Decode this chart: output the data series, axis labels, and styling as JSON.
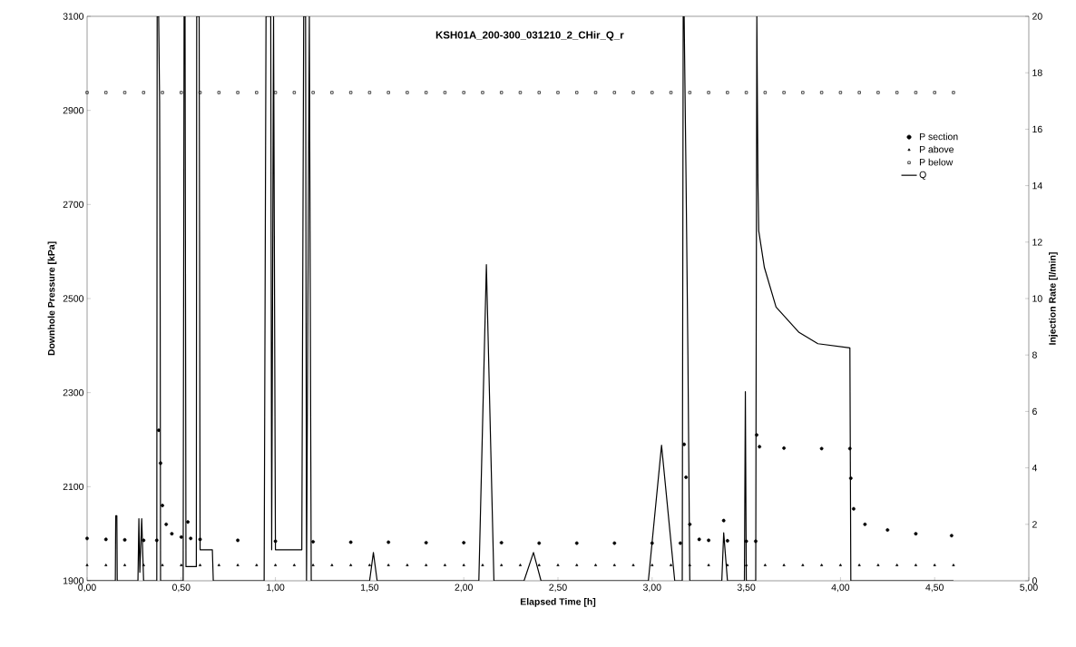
{
  "chart_data": {
    "type": "scatter",
    "title": "KSH01A_200-300_031210_2_CHir_Q_r",
    "xlabel": "Elapsed Time [h]",
    "ylabel": "Downhole Pressure [kPa]",
    "y2label": "Injection Rate [l/min]",
    "xlim": [
      0,
      5
    ],
    "ylim": [
      1900,
      3100
    ],
    "y2lim": [
      0,
      20
    ],
    "xticks": [
      {
        "value": 0,
        "label": "0,00"
      },
      {
        "value": 0.5,
        "label": "0,50"
      },
      {
        "value": 1,
        "label": "1,00"
      },
      {
        "value": 1.5,
        "label": "1,50"
      },
      {
        "value": 2,
        "label": "2,00"
      },
      {
        "value": 2.5,
        "label": "2,50"
      },
      {
        "value": 3,
        "label": "3,00"
      },
      {
        "value": 3.5,
        "label": "3,50"
      },
      {
        "value": 4,
        "label": "4,00"
      },
      {
        "value": 4.5,
        "label": "4,50"
      },
      {
        "value": 5,
        "label": "5,00"
      }
    ],
    "yticks": [
      1900,
      2100,
      2300,
      2500,
      2700,
      2900,
      3100
    ],
    "y2ticks": [
      0,
      2,
      4,
      6,
      8,
      10,
      12,
      14,
      16,
      18,
      20
    ],
    "legend": "right",
    "series": [
      {
        "name": "P section",
        "marker": "circle",
        "color": "#000000",
        "x": [
          0,
          0.1,
          0.2,
          0.3,
          0.37,
          0.38,
          0.39,
          0.4,
          0.42,
          0.45,
          0.5,
          0.535,
          0.55,
          0.6,
          0.8,
          1.0,
          1.2,
          1.4,
          1.6,
          1.8,
          2.0,
          2.2,
          2.4,
          2.6,
          2.8,
          3.0,
          3.15,
          3.17,
          3.18,
          3.2,
          3.25,
          3.3,
          3.38,
          3.4,
          3.5,
          3.55,
          3.555,
          3.57,
          3.7,
          3.9,
          4.05,
          4.055,
          4.07,
          4.13,
          4.25,
          4.4,
          4.59
        ],
        "values": [
          1990,
          1988,
          1987,
          1986,
          1986,
          2220,
          2150,
          2060,
          2020,
          2000,
          1993,
          2025,
          1990,
          1988,
          1986,
          1984,
          1983,
          1982,
          1982,
          1981,
          1981,
          1981,
          1980,
          1980,
          1980,
          1980,
          1980,
          2190,
          2120,
          2020,
          1988,
          1986,
          2028,
          1985,
          1984,
          1984,
          2210,
          2185,
          2182,
          2181,
          2181,
          2118,
          2053,
          2020,
          2008,
          2000,
          1996
        ]
      },
      {
        "name": "P above",
        "marker": "triangle",
        "color": "#000000",
        "x": [
          0,
          0.1,
          0.2,
          0.3,
          0.4,
          0.5,
          0.6,
          0.7,
          0.8,
          0.9,
          1.0,
          1.1,
          1.2,
          1.3,
          1.4,
          1.5,
          1.6,
          1.7,
          1.8,
          1.9,
          2.0,
          2.1,
          2.2,
          2.3,
          2.4,
          2.5,
          2.6,
          2.7,
          2.8,
          2.9,
          3.0,
          3.1,
          3.2,
          3.3,
          3.4,
          3.5,
          3.6,
          3.7,
          3.8,
          3.9,
          4.0,
          4.1,
          4.2,
          4.3,
          4.4,
          4.5,
          4.6
        ],
        "values": [
          1933,
          1933,
          1933,
          1933,
          1933,
          1933,
          1933,
          1933,
          1933,
          1933,
          1933,
          1933,
          1933,
          1933,
          1933,
          1933,
          1933,
          1933,
          1933,
          1933,
          1933,
          1933,
          1933,
          1933,
          1933,
          1933,
          1933,
          1933,
          1933,
          1933,
          1933,
          1933,
          1933,
          1933,
          1933,
          1933,
          1933,
          1933,
          1933,
          1933,
          1933,
          1933,
          1933,
          1933,
          1933,
          1933,
          1933
        ]
      },
      {
        "name": "P below",
        "marker": "square",
        "color": "#000000",
        "x": [
          0,
          0.1,
          0.2,
          0.3,
          0.4,
          0.5,
          0.6,
          0.7,
          0.8,
          0.9,
          1.0,
          1.1,
          1.2,
          1.3,
          1.4,
          1.5,
          1.6,
          1.7,
          1.8,
          1.9,
          2.0,
          2.1,
          2.2,
          2.3,
          2.4,
          2.5,
          2.6,
          2.7,
          2.8,
          2.9,
          3.0,
          3.1,
          3.2,
          3.3,
          3.4,
          3.5,
          3.6,
          3.7,
          3.8,
          3.9,
          4.0,
          4.1,
          4.2,
          4.3,
          4.4,
          4.5,
          4.6
        ],
        "values": [
          2938,
          2938,
          2938,
          2938,
          2938,
          2938,
          2938,
          2938,
          2938,
          2938,
          2938,
          2938,
          2938,
          2938,
          2938,
          2938,
          2938,
          2938,
          2938,
          2938,
          2938,
          2938,
          2938,
          2938,
          2938,
          2938,
          2938,
          2938,
          2938,
          2938,
          2938,
          2938,
          2938,
          2938,
          2938,
          2938,
          2938,
          2938,
          2938,
          2938,
          2938,
          2938,
          2938,
          2938,
          2938,
          2938,
          2938
        ]
      },
      {
        "name": "Q",
        "type": "line",
        "axis": "y2",
        "marker": "none",
        "line_style": "solid",
        "color": "#000000",
        "x": [
          0,
          0.15,
          0.152,
          0.158,
          0.16,
          0.27,
          0.275,
          0.28,
          0.29,
          0.3,
          0.37,
          0.372,
          0.38,
          0.385,
          0.388,
          0.39,
          0.51,
          0.515,
          0.52,
          0.525,
          0.58,
          0.582,
          0.595,
          0.6,
          0.665,
          0.67,
          0.94,
          0.95,
          0.975,
          0.98,
          0.99,
          1.0,
          1.14,
          1.15,
          1.16,
          1.165,
          1.18,
          1.19,
          1.5,
          1.52,
          1.54,
          2.08,
          2.12,
          2.16,
          2.32,
          2.37,
          2.41,
          2.98,
          3.05,
          3.12,
          3.16,
          3.165,
          3.17,
          3.18,
          3.19,
          3.2,
          3.37,
          3.38,
          3.4,
          3.49,
          3.495,
          3.5,
          3.55,
          3.556,
          3.56,
          3.562,
          3.566,
          3.596,
          3.658,
          3.78,
          3.88,
          4.05,
          4.055,
          4.6
        ],
        "values": [
          0,
          0,
          2.3,
          2.3,
          0,
          0,
          2.2,
          0.3,
          2.2,
          0,
          0,
          20,
          20,
          17,
          10,
          0,
          0,
          20,
          20,
          0.5,
          0.5,
          20,
          20,
          1.1,
          1.1,
          0,
          0,
          20,
          20,
          1.1,
          20,
          1.1,
          1.1,
          20,
          20,
          0,
          20,
          0,
          0,
          1.0,
          0,
          0,
          11.2,
          0,
          0,
          1.0,
          0,
          0,
          4.8,
          0,
          0,
          20,
          20,
          14.3,
          8,
          0,
          0,
          1.7,
          0,
          0,
          6.7,
          0,
          0,
          20,
          16,
          14,
          12.4,
          11.1,
          9.7,
          8.8,
          8.4,
          8.25,
          0,
          0
        ]
      }
    ]
  }
}
